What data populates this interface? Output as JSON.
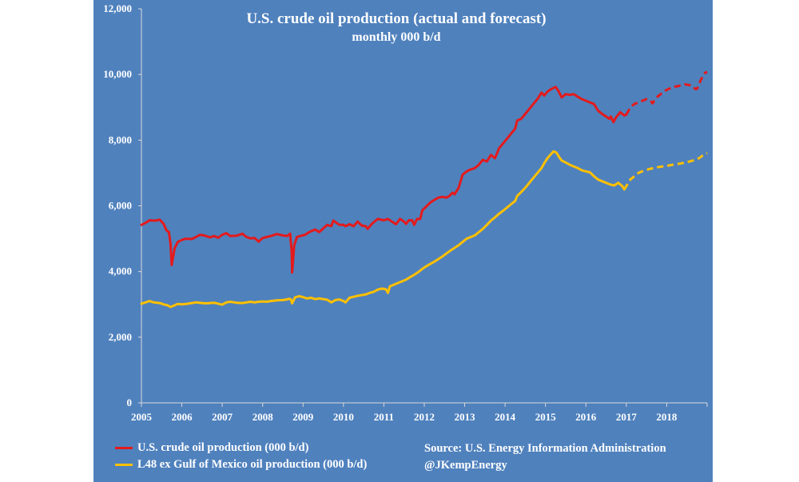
{
  "chart_data": {
    "type": "line",
    "title": "U.S. crude oil production (actual and forecast)",
    "subtitle": "monthly 000 b/d",
    "ylim": [
      0,
      12000
    ],
    "yticks": [
      "0",
      "2,000",
      "4,000",
      "6,000",
      "8,000",
      "10,000",
      "12,000"
    ],
    "xlim": [
      2005,
      2019
    ],
    "xticks": [
      "2005",
      "2006",
      "2007",
      "2008",
      "2009",
      "2010",
      "2011",
      "2012",
      "2013",
      "2014",
      "2015",
      "2016",
      "2017",
      "2018"
    ],
    "forecast_start": 2017.0,
    "grid": false,
    "legend_position": "bottom-left",
    "series": [
      {
        "name": "U.S. crude oil production (000 b/d)",
        "color": "#e41a1c",
        "points": [
          [
            2005.0,
            5420
          ],
          [
            2005.1,
            5480
          ],
          [
            2005.2,
            5560
          ],
          [
            2005.35,
            5550
          ],
          [
            2005.45,
            5580
          ],
          [
            2005.55,
            5450
          ],
          [
            2005.62,
            5250
          ],
          [
            2005.68,
            5200
          ],
          [
            2005.72,
            4850
          ],
          [
            2005.75,
            4200
          ],
          [
            2005.82,
            4700
          ],
          [
            2005.9,
            4900
          ],
          [
            2006.0,
            4960
          ],
          [
            2006.1,
            5000
          ],
          [
            2006.25,
            4990
          ],
          [
            2006.35,
            5050
          ],
          [
            2006.45,
            5120
          ],
          [
            2006.55,
            5100
          ],
          [
            2006.7,
            5040
          ],
          [
            2006.8,
            5080
          ],
          [
            2006.9,
            5030
          ],
          [
            2007.0,
            5120
          ],
          [
            2007.1,
            5170
          ],
          [
            2007.2,
            5080
          ],
          [
            2007.35,
            5090
          ],
          [
            2007.5,
            5150
          ],
          [
            2007.6,
            5050
          ],
          [
            2007.7,
            5010
          ],
          [
            2007.8,
            5020
          ],
          [
            2007.9,
            4910
          ],
          [
            2008.0,
            5020
          ],
          [
            2008.1,
            5050
          ],
          [
            2008.2,
            5080
          ],
          [
            2008.35,
            5140
          ],
          [
            2008.5,
            5100
          ],
          [
            2008.6,
            5080
          ],
          [
            2008.68,
            5150
          ],
          [
            2008.72,
            4600
          ],
          [
            2008.73,
            3970
          ],
          [
            2008.78,
            4800
          ],
          [
            2008.85,
            5050
          ],
          [
            2008.95,
            5090
          ],
          [
            2009.05,
            5120
          ],
          [
            2009.15,
            5200
          ],
          [
            2009.3,
            5280
          ],
          [
            2009.4,
            5200
          ],
          [
            2009.5,
            5310
          ],
          [
            2009.6,
            5420
          ],
          [
            2009.7,
            5380
          ],
          [
            2009.75,
            5550
          ],
          [
            2009.9,
            5420
          ],
          [
            2010.0,
            5420
          ],
          [
            2010.05,
            5380
          ],
          [
            2010.15,
            5440
          ],
          [
            2010.25,
            5380
          ],
          [
            2010.35,
            5520
          ],
          [
            2010.45,
            5400
          ],
          [
            2010.55,
            5380
          ],
          [
            2010.6,
            5300
          ],
          [
            2010.7,
            5450
          ],
          [
            2010.75,
            5500
          ],
          [
            2010.85,
            5600
          ],
          [
            2011.0,
            5560
          ],
          [
            2011.1,
            5600
          ],
          [
            2011.2,
            5520
          ],
          [
            2011.3,
            5440
          ],
          [
            2011.4,
            5600
          ],
          [
            2011.5,
            5520
          ],
          [
            2011.55,
            5450
          ],
          [
            2011.62,
            5560
          ],
          [
            2011.7,
            5560
          ],
          [
            2011.75,
            5420
          ],
          [
            2011.82,
            5600
          ],
          [
            2011.9,
            5600
          ],
          [
            2011.95,
            5860
          ],
          [
            2012.05,
            5980
          ],
          [
            2012.15,
            6100
          ],
          [
            2012.25,
            6180
          ],
          [
            2012.35,
            6250
          ],
          [
            2012.45,
            6270
          ],
          [
            2012.55,
            6250
          ],
          [
            2012.62,
            6300
          ],
          [
            2012.7,
            6400
          ],
          [
            2012.75,
            6350
          ],
          [
            2012.85,
            6550
          ],
          [
            2012.95,
            6950
          ],
          [
            2013.05,
            7050
          ],
          [
            2013.15,
            7110
          ],
          [
            2013.25,
            7150
          ],
          [
            2013.35,
            7250
          ],
          [
            2013.45,
            7400
          ],
          [
            2013.55,
            7350
          ],
          [
            2013.65,
            7550
          ],
          [
            2013.75,
            7450
          ],
          [
            2013.85,
            7750
          ],
          [
            2013.95,
            7900
          ],
          [
            2014.05,
            8050
          ],
          [
            2014.15,
            8200
          ],
          [
            2014.25,
            8350
          ],
          [
            2014.3,
            8600
          ],
          [
            2014.4,
            8650
          ],
          [
            2014.5,
            8800
          ],
          [
            2014.6,
            8950
          ],
          [
            2014.7,
            9100
          ],
          [
            2014.8,
            9250
          ],
          [
            2014.9,
            9450
          ],
          [
            2014.97,
            9360
          ],
          [
            2015.05,
            9480
          ],
          [
            2015.15,
            9560
          ],
          [
            2015.25,
            9620
          ],
          [
            2015.32,
            9500
          ],
          [
            2015.4,
            9300
          ],
          [
            2015.5,
            9400
          ],
          [
            2015.6,
            9380
          ],
          [
            2015.7,
            9400
          ],
          [
            2015.8,
            9320
          ],
          [
            2015.9,
            9250
          ],
          [
            2016.0,
            9200
          ],
          [
            2016.1,
            9150
          ],
          [
            2016.2,
            9100
          ],
          [
            2016.3,
            8900
          ],
          [
            2016.4,
            8800
          ],
          [
            2016.5,
            8720
          ],
          [
            2016.58,
            8650
          ],
          [
            2016.62,
            8720
          ],
          [
            2016.68,
            8550
          ],
          [
            2016.75,
            8700
          ],
          [
            2016.85,
            8850
          ],
          [
            2016.95,
            8750
          ],
          [
            2017.0,
            8780
          ]
        ],
        "forecast_points": [
          [
            2017.0,
            8780
          ],
          [
            2017.1,
            9000
          ],
          [
            2017.2,
            9100
          ],
          [
            2017.3,
            9150
          ],
          [
            2017.4,
            9200
          ],
          [
            2017.5,
            9250
          ],
          [
            2017.6,
            9200
          ],
          [
            2017.65,
            9120
          ],
          [
            2017.75,
            9300
          ],
          [
            2017.85,
            9400
          ],
          [
            2017.95,
            9500
          ],
          [
            2018.05,
            9560
          ],
          [
            2018.15,
            9620
          ],
          [
            2018.3,
            9650
          ],
          [
            2018.45,
            9700
          ],
          [
            2018.55,
            9680
          ],
          [
            2018.65,
            9650
          ],
          [
            2018.7,
            9560
          ],
          [
            2018.75,
            9560
          ],
          [
            2018.8,
            9700
          ],
          [
            2018.85,
            9850
          ],
          [
            2018.95,
            10050
          ],
          [
            2019.0,
            10080
          ]
        ]
      },
      {
        "name": "L48 ex Gulf of Mexico oil production (000 b/d)",
        "color": "#ffc000",
        "points": [
          [
            2005.0,
            3020
          ],
          [
            2005.1,
            3060
          ],
          [
            2005.2,
            3100
          ],
          [
            2005.3,
            3060
          ],
          [
            2005.45,
            3040
          ],
          [
            2005.55,
            3000
          ],
          [
            2005.65,
            2970
          ],
          [
            2005.72,
            2920
          ],
          [
            2005.8,
            2960
          ],
          [
            2005.9,
            3010
          ],
          [
            2006.0,
            3000
          ],
          [
            2006.1,
            3010
          ],
          [
            2006.25,
            3040
          ],
          [
            2006.35,
            3060
          ],
          [
            2006.5,
            3040
          ],
          [
            2006.6,
            3030
          ],
          [
            2006.7,
            3040
          ],
          [
            2006.8,
            3050
          ],
          [
            2006.9,
            3020
          ],
          [
            2007.0,
            2990
          ],
          [
            2007.1,
            3060
          ],
          [
            2007.2,
            3080
          ],
          [
            2007.35,
            3050
          ],
          [
            2007.5,
            3040
          ],
          [
            2007.6,
            3060
          ],
          [
            2007.7,
            3080
          ],
          [
            2007.8,
            3060
          ],
          [
            2007.9,
            3080
          ],
          [
            2008.0,
            3090
          ],
          [
            2008.1,
            3080
          ],
          [
            2008.2,
            3100
          ],
          [
            2008.35,
            3120
          ],
          [
            2008.5,
            3130
          ],
          [
            2008.6,
            3150
          ],
          [
            2008.65,
            3170
          ],
          [
            2008.7,
            3150
          ],
          [
            2008.73,
            3030
          ],
          [
            2008.8,
            3210
          ],
          [
            2008.9,
            3250
          ],
          [
            2009.0,
            3220
          ],
          [
            2009.1,
            3180
          ],
          [
            2009.2,
            3200
          ],
          [
            2009.3,
            3160
          ],
          [
            2009.4,
            3180
          ],
          [
            2009.5,
            3160
          ],
          [
            2009.6,
            3140
          ],
          [
            2009.7,
            3060
          ],
          [
            2009.8,
            3130
          ],
          [
            2009.9,
            3150
          ],
          [
            2010.0,
            3100
          ],
          [
            2010.05,
            3060
          ],
          [
            2010.15,
            3200
          ],
          [
            2010.25,
            3230
          ],
          [
            2010.35,
            3260
          ],
          [
            2010.45,
            3280
          ],
          [
            2010.55,
            3300
          ],
          [
            2010.65,
            3350
          ],
          [
            2010.75,
            3380
          ],
          [
            2010.85,
            3450
          ],
          [
            2010.95,
            3480
          ],
          [
            2011.05,
            3460
          ],
          [
            2011.1,
            3350
          ],
          [
            2011.15,
            3550
          ],
          [
            2011.25,
            3600
          ],
          [
            2011.35,
            3650
          ],
          [
            2011.45,
            3700
          ],
          [
            2011.55,
            3750
          ],
          [
            2011.65,
            3830
          ],
          [
            2011.75,
            3900
          ],
          [
            2011.85,
            3980
          ],
          [
            2011.95,
            4080
          ],
          [
            2012.05,
            4160
          ],
          [
            2012.15,
            4230
          ],
          [
            2012.25,
            4300
          ],
          [
            2012.35,
            4380
          ],
          [
            2012.45,
            4460
          ],
          [
            2012.55,
            4550
          ],
          [
            2012.65,
            4640
          ],
          [
            2012.75,
            4720
          ],
          [
            2012.85,
            4800
          ],
          [
            2012.95,
            4900
          ],
          [
            2013.05,
            5000
          ],
          [
            2013.15,
            5050
          ],
          [
            2013.25,
            5100
          ],
          [
            2013.35,
            5200
          ],
          [
            2013.45,
            5300
          ],
          [
            2013.55,
            5420
          ],
          [
            2013.65,
            5550
          ],
          [
            2013.75,
            5650
          ],
          [
            2013.85,
            5760
          ],
          [
            2013.95,
            5850
          ],
          [
            2014.05,
            5950
          ],
          [
            2014.15,
            6050
          ],
          [
            2014.25,
            6150
          ],
          [
            2014.3,
            6300
          ],
          [
            2014.4,
            6420
          ],
          [
            2014.5,
            6550
          ],
          [
            2014.6,
            6700
          ],
          [
            2014.7,
            6850
          ],
          [
            2014.8,
            7000
          ],
          [
            2014.9,
            7150
          ],
          [
            2014.97,
            7300
          ],
          [
            2015.05,
            7450
          ],
          [
            2015.12,
            7550
          ],
          [
            2015.2,
            7660
          ],
          [
            2015.27,
            7620
          ],
          [
            2015.33,
            7500
          ],
          [
            2015.4,
            7380
          ],
          [
            2015.5,
            7320
          ],
          [
            2015.6,
            7250
          ],
          [
            2015.7,
            7200
          ],
          [
            2015.8,
            7150
          ],
          [
            2015.9,
            7080
          ],
          [
            2016.0,
            7050
          ],
          [
            2016.1,
            7020
          ],
          [
            2016.2,
            6900
          ],
          [
            2016.3,
            6800
          ],
          [
            2016.4,
            6750
          ],
          [
            2016.5,
            6700
          ],
          [
            2016.6,
            6650
          ],
          [
            2016.7,
            6620
          ],
          [
            2016.8,
            6700
          ],
          [
            2016.9,
            6600
          ],
          [
            2016.95,
            6500
          ]
        ],
        "forecast_points": [
          [
            2016.95,
            6500
          ],
          [
            2017.0,
            6600
          ],
          [
            2017.1,
            6800
          ],
          [
            2017.2,
            6900
          ],
          [
            2017.3,
            7000
          ],
          [
            2017.45,
            7080
          ],
          [
            2017.6,
            7130
          ],
          [
            2017.75,
            7170
          ],
          [
            2017.9,
            7200
          ],
          [
            2018.05,
            7230
          ],
          [
            2018.2,
            7260
          ],
          [
            2018.35,
            7290
          ],
          [
            2018.5,
            7330
          ],
          [
            2018.65,
            7380
          ],
          [
            2018.8,
            7450
          ],
          [
            2018.9,
            7540
          ],
          [
            2019.0,
            7610
          ]
        ]
      }
    ],
    "source_lines": [
      "Source: U.S. Energy Information Administration",
      "@JKempEnergy"
    ]
  },
  "colors": {
    "background": "#4f81bd",
    "text": "#ffffff",
    "axis": "#d9d9d9"
  }
}
